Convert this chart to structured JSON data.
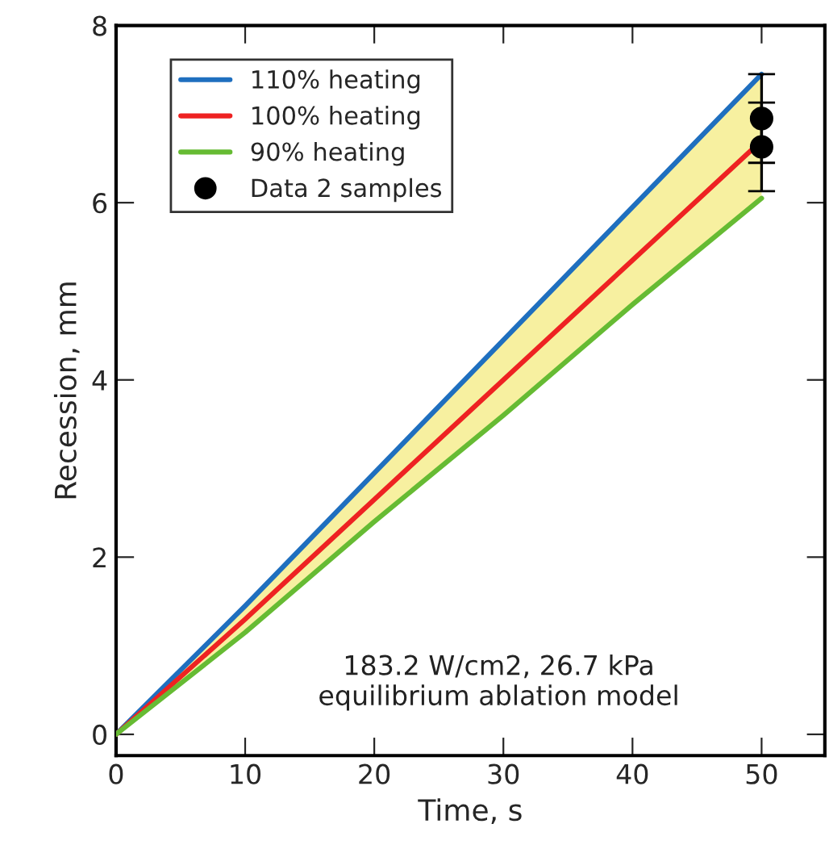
{
  "chart_data": {
    "type": "line",
    "xlabel": "Time, s",
    "ylabel": "Recession, mm",
    "x": [
      0,
      10,
      20,
      30,
      40,
      50
    ],
    "series": [
      {
        "name": "110% heating",
        "color": "#1f6fbf",
        "values": [
          0,
          1.45,
          2.95,
          4.45,
          5.95,
          7.45
        ]
      },
      {
        "name": "100% heating",
        "color": "#ee2222",
        "values": [
          0,
          1.3,
          2.65,
          4.0,
          5.35,
          6.7
        ],
        "lower": [
          0,
          1.15,
          2.4,
          3.6,
          4.85,
          6.05
        ],
        "upper": [
          0,
          1.45,
          2.95,
          4.45,
          5.95,
          7.45
        ]
      },
      {
        "name": "90% heating",
        "color": "#66bb33",
        "values": [
          0,
          1.15,
          2.4,
          3.6,
          4.85,
          6.05
        ]
      },
      {
        "name": "Data 2 samples",
        "type": "scatter",
        "marker": "circle",
        "color": "#000000",
        "x": [
          50,
          50
        ],
        "values": [
          6.95,
          6.63
        ],
        "errors": [
          0.5,
          0.5
        ]
      }
    ],
    "xlim": [
      0,
      54.9
    ],
    "ylim": [
      -0.24,
      8
    ],
    "xticks": [
      0,
      10,
      20,
      30,
      40,
      50
    ],
    "yticks": [
      0,
      2,
      4,
      6,
      8
    ],
    "grid": false,
    "legend": "top left",
    "annotations": [
      "183.2 W/cm2, 26.7 kPa\nequilibrium ablation model"
    ]
  }
}
